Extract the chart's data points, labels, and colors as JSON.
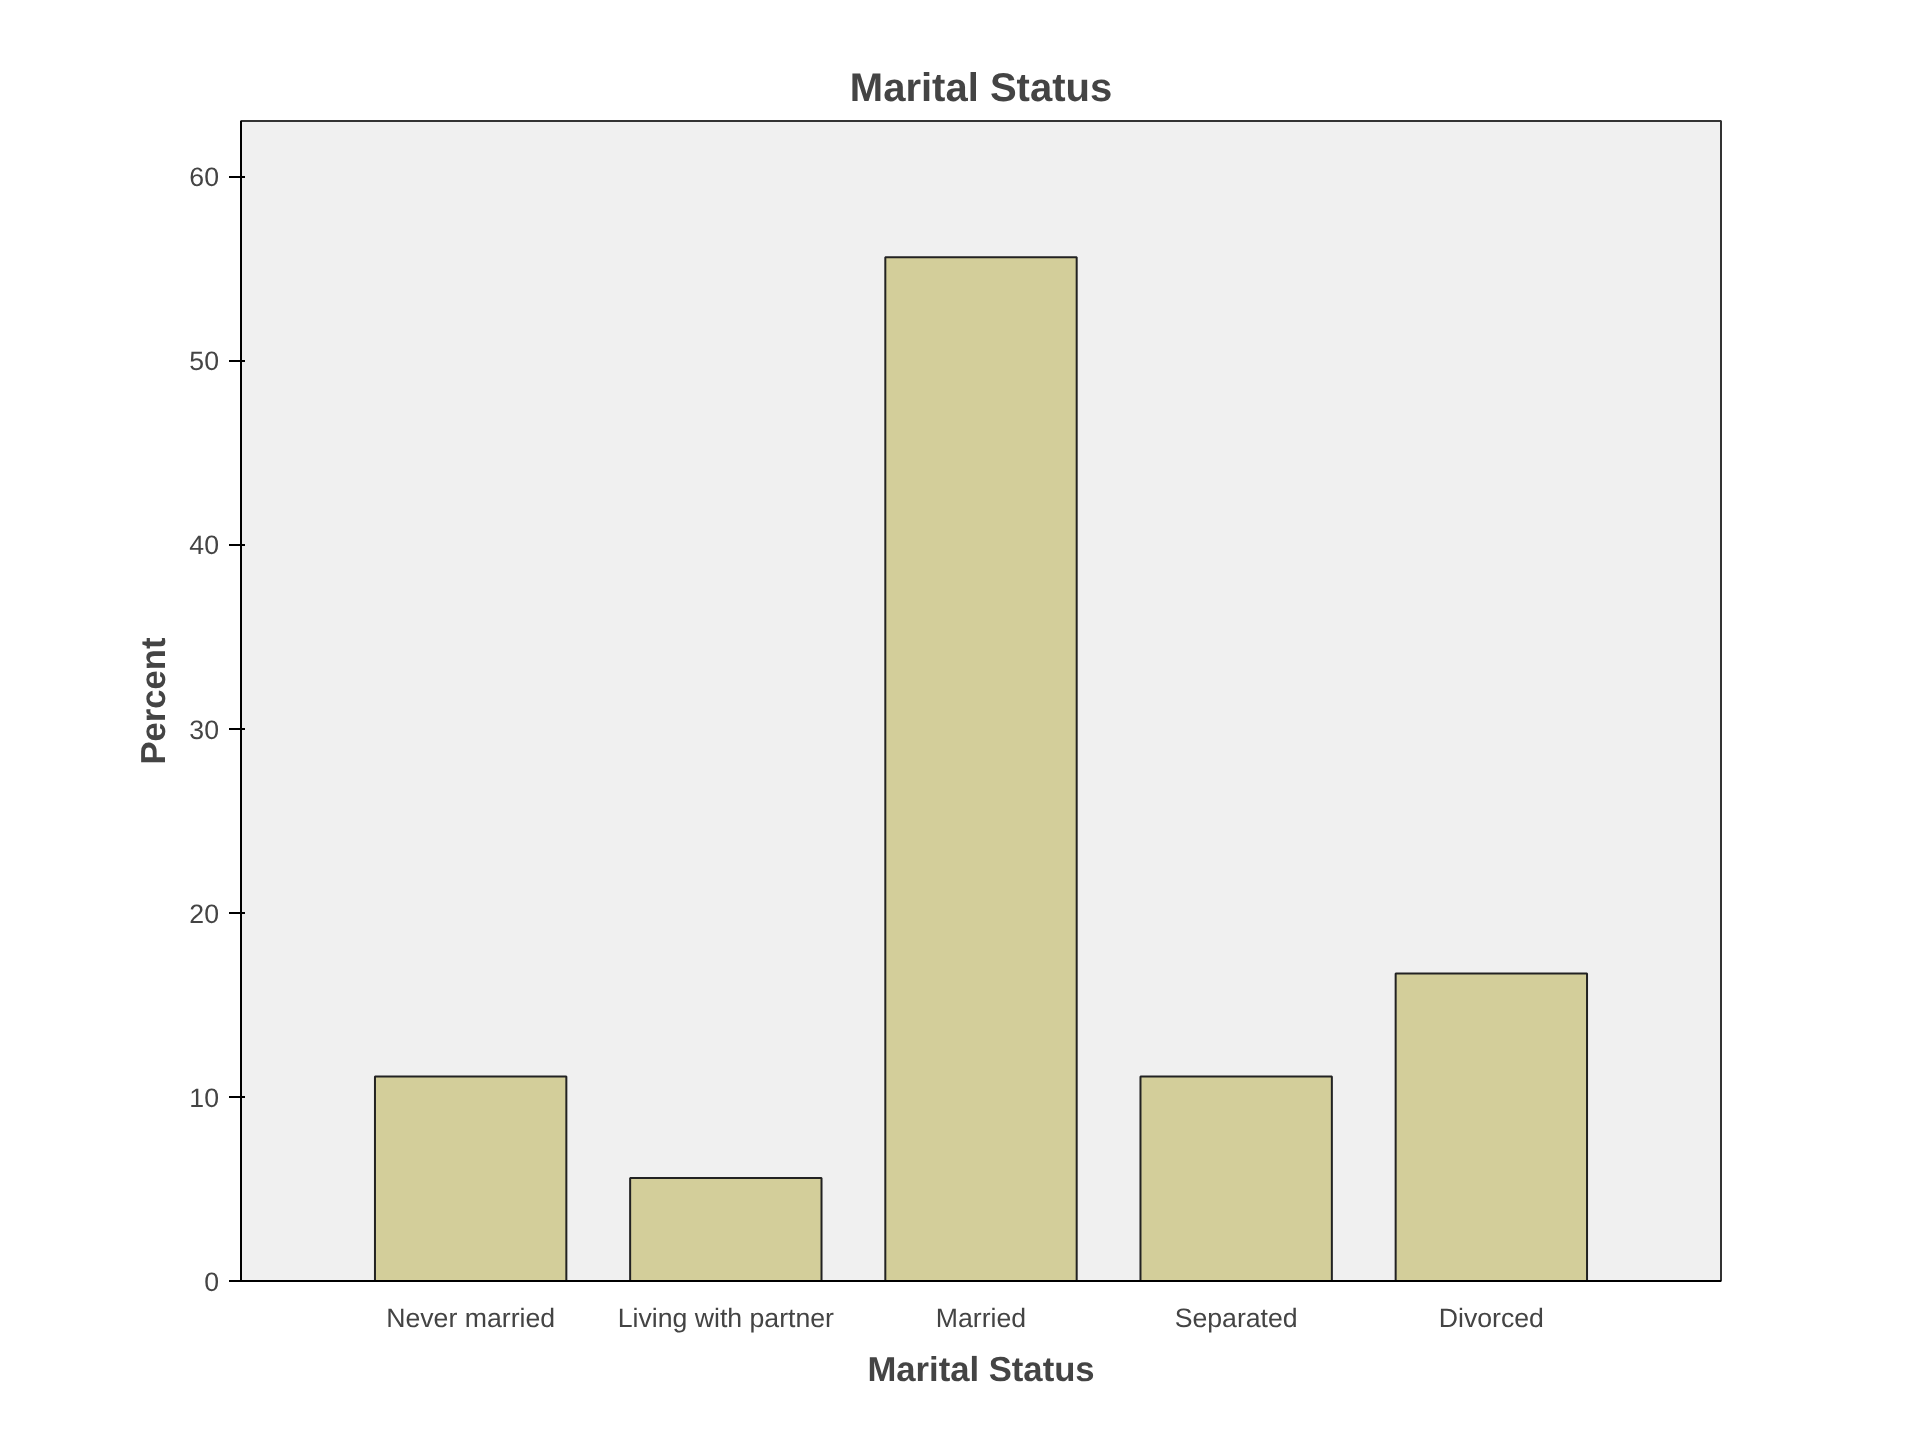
{
  "chart_data": {
    "type": "bar",
    "title": "Marital Status",
    "xlabel": "Marital Status",
    "ylabel": "Percent",
    "categories": [
      "Never married",
      "Living with partner",
      "Married",
      "Separated",
      "Divorced"
    ],
    "values": [
      11.1,
      5.6,
      55.6,
      11.1,
      16.7
    ],
    "color": "#d3ce9a",
    "ylim": [
      0,
      63
    ],
    "yticks": [
      0,
      10,
      20,
      30,
      40,
      50,
      60
    ],
    "grid": false
  }
}
